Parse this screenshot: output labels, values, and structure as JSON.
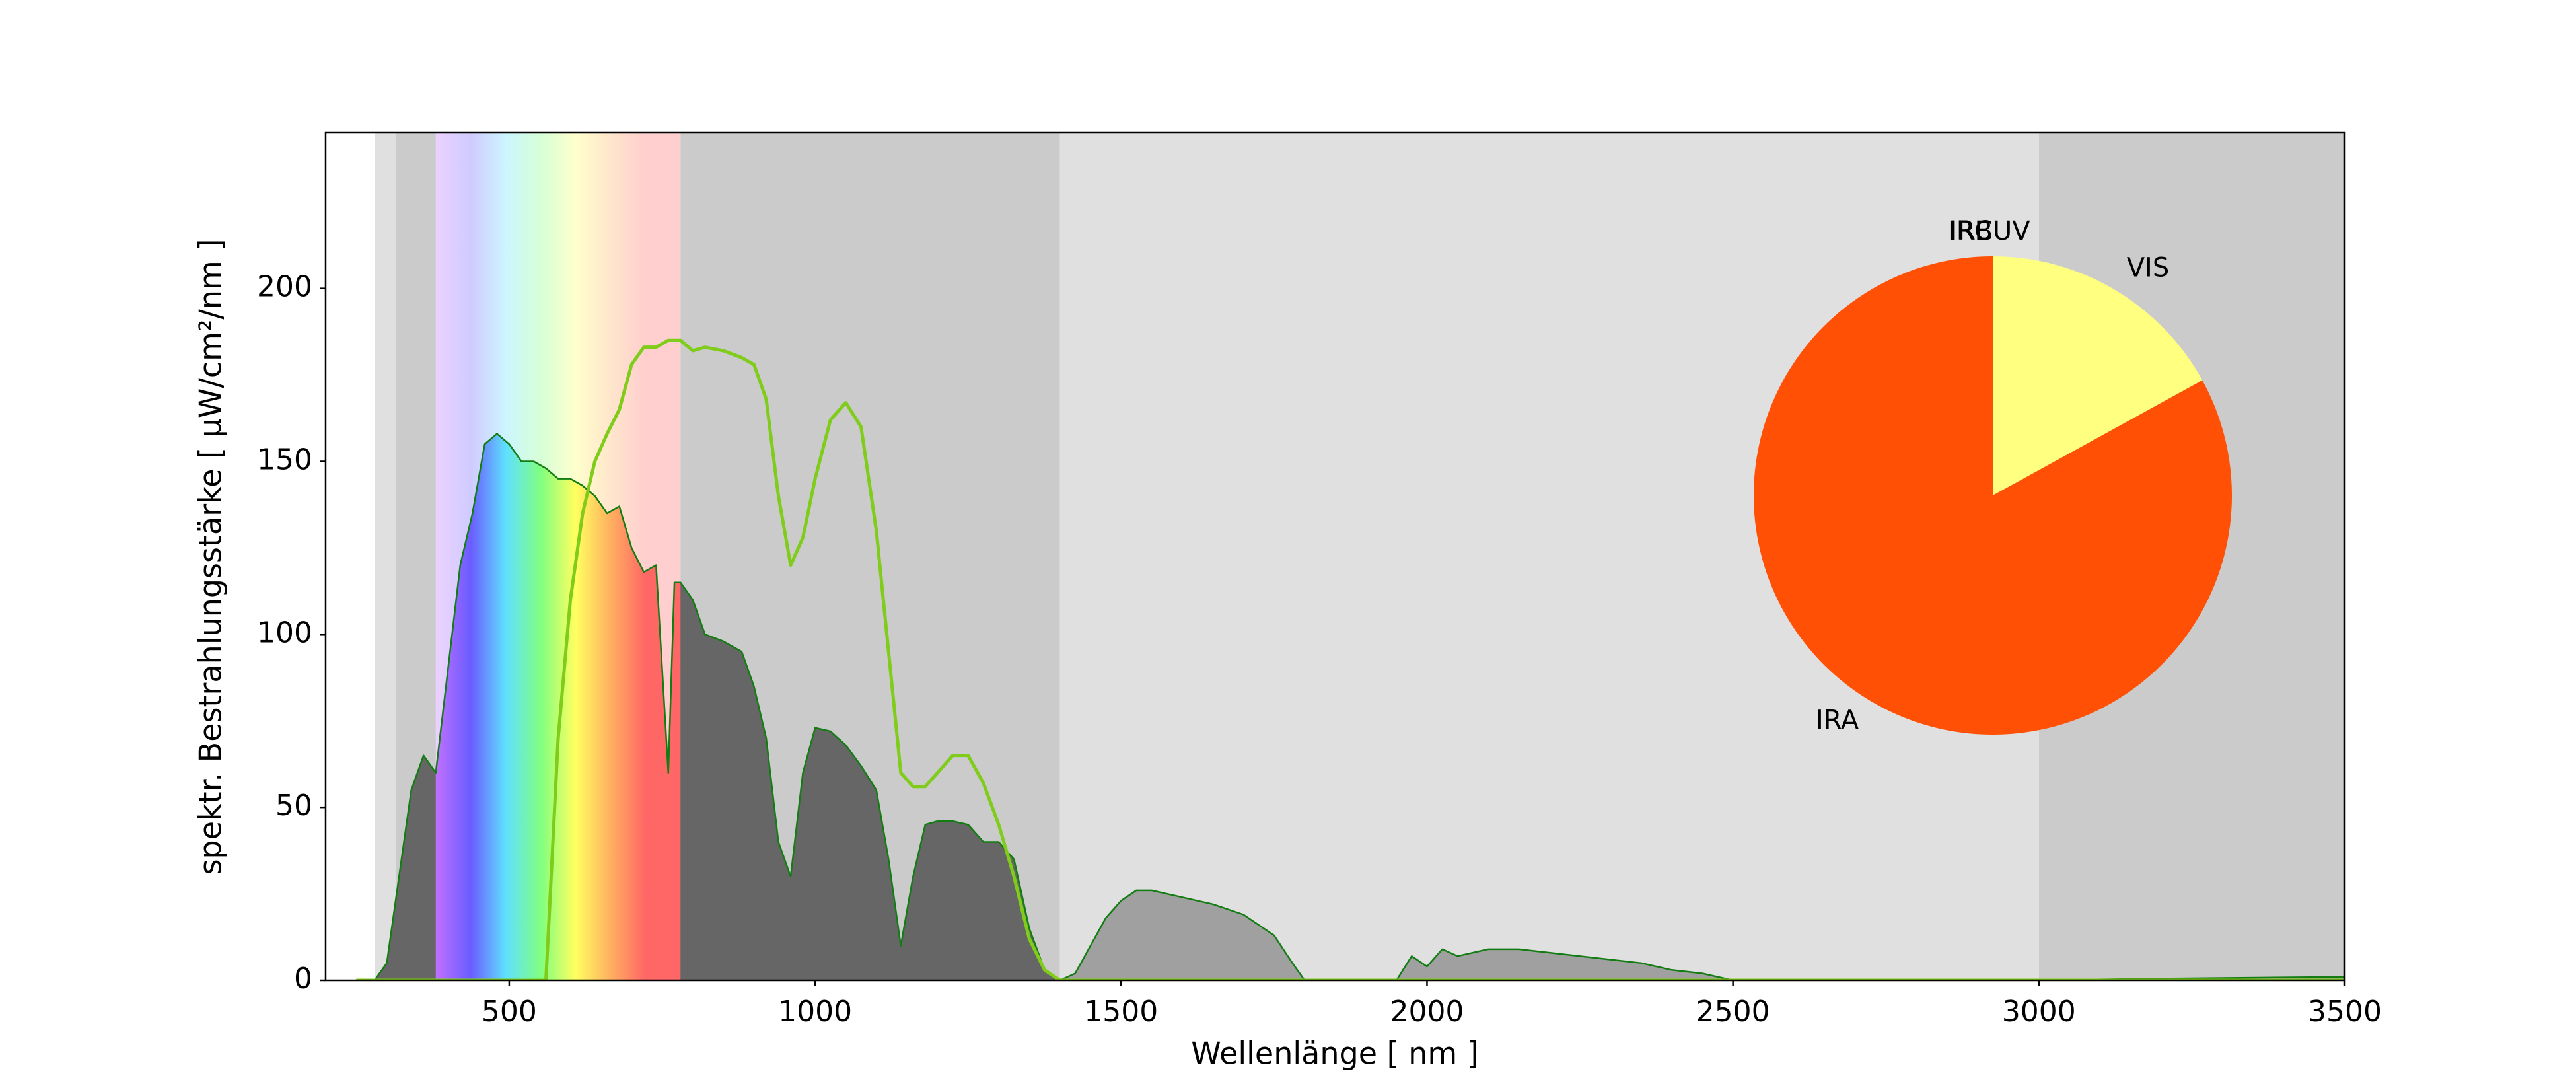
{
  "chart_data": [
    {
      "type": "line",
      "xlabel": "Wellenlänge  [ nm ]",
      "ylabel": "spektr. Bestrahlungsstärke  [ µW/cm²/nm ]",
      "xlim": [
        200,
        3500
      ],
      "xticks": [
        500,
        1000,
        1500,
        2000,
        2500,
        3000,
        3500
      ],
      "ylim": [
        0,
        245
      ],
      "yticks": [
        0,
        50,
        100,
        150,
        200
      ],
      "bands": [
        {
          "start": 280,
          "end": 315,
          "color": "#e0e0e0"
        },
        {
          "start": 315,
          "end": 380,
          "color": "#cbcbcb"
        },
        {
          "start": 380,
          "end": 780,
          "gradient": [
            "#c070ff",
            "#6a5cff",
            "#60e0ff",
            "#80ff80",
            "#ffff60",
            "#ffb060",
            "#ff6666",
            "#ff6666"
          ]
        },
        {
          "start": 780,
          "end": 1400,
          "color": "#cbcbcb"
        },
        {
          "start": 1400,
          "end": 3000,
          "color": "#e0e0e0"
        },
        {
          "start": 3000,
          "end": 3500,
          "color": "#cbcbcb"
        }
      ],
      "fill_regions": [
        {
          "start": 250,
          "end": 1400,
          "color": "#666666"
        },
        {
          "start": 1400,
          "end": 3500,
          "color": "#a0a0a0"
        }
      ],
      "x": [
        250,
        280,
        300,
        320,
        340,
        360,
        380,
        400,
        420,
        440,
        460,
        480,
        500,
        520,
        540,
        560,
        580,
        600,
        620,
        640,
        660,
        680,
        700,
        720,
        740,
        760,
        770,
        780,
        800,
        820,
        850,
        880,
        900,
        920,
        940,
        960,
        980,
        1000,
        1025,
        1050,
        1075,
        1100,
        1120,
        1140,
        1160,
        1180,
        1200,
        1225,
        1250,
        1275,
        1300,
        1325,
        1350,
        1375,
        1400,
        1425,
        1450,
        1475,
        1500,
        1525,
        1550,
        1600,
        1650,
        1700,
        1750,
        1780,
        1800,
        1950,
        1975,
        2000,
        2025,
        2050,
        2100,
        2150,
        2200,
        2250,
        2300,
        2350,
        2400,
        2450,
        2500,
        3000,
        3200,
        3500
      ],
      "series": [
        {
          "color": "#137c13",
          "values": [
            0,
            0,
            5,
            30,
            55,
            65,
            60,
            90,
            120,
            135,
            155,
            158,
            155,
            150,
            150,
            148,
            145,
            145,
            143,
            140,
            135,
            137,
            125,
            118,
            120,
            60,
            115,
            115,
            110,
            100,
            98,
            95,
            85,
            70,
            40,
            30,
            60,
            73,
            72,
            68,
            62,
            55,
            35,
            10,
            30,
            45,
            46,
            46,
            45,
            40,
            40,
            35,
            15,
            3,
            0,
            2,
            10,
            18,
            23,
            26,
            26,
            24,
            22,
            19,
            13,
            5,
            0,
            0,
            7,
            4,
            9,
            7,
            9,
            9,
            8,
            7,
            6,
            5,
            3,
            2,
            0,
            0,
            0.5,
            1
          ]
        },
        {
          "color": "#80cc1a",
          "values": [
            0,
            0,
            0,
            0,
            0,
            0,
            0,
            0,
            0,
            0,
            0,
            0,
            0,
            0,
            0,
            0,
            70,
            110,
            135,
            150,
            158,
            165,
            178,
            183,
            183,
            185,
            185,
            185,
            182,
            183,
            182,
            180,
            178,
            168,
            140,
            120,
            128,
            145,
            162,
            167,
            160,
            130,
            95,
            60,
            56,
            56,
            60,
            65,
            65,
            57,
            45,
            30,
            12,
            3,
            0,
            0,
            0,
            0,
            0,
            0,
            0,
            0,
            0,
            0,
            0,
            0,
            0,
            0,
            0,
            0,
            0,
            0,
            0,
            0,
            0,
            0,
            0,
            0,
            0,
            0,
            0,
            0,
            0,
            0
          ]
        }
      ]
    },
    {
      "type": "pie",
      "startangle": 90,
      "counterclock": false,
      "categories": [
        "UV",
        "VIS",
        "IRA",
        "IRB",
        "IRC"
      ],
      "values": [
        0,
        17,
        83,
        0,
        0
      ],
      "colors": [
        "#9040ff",
        "#ffff80",
        "#ff5005",
        "#ff9050",
        "#c04000"
      ]
    }
  ]
}
